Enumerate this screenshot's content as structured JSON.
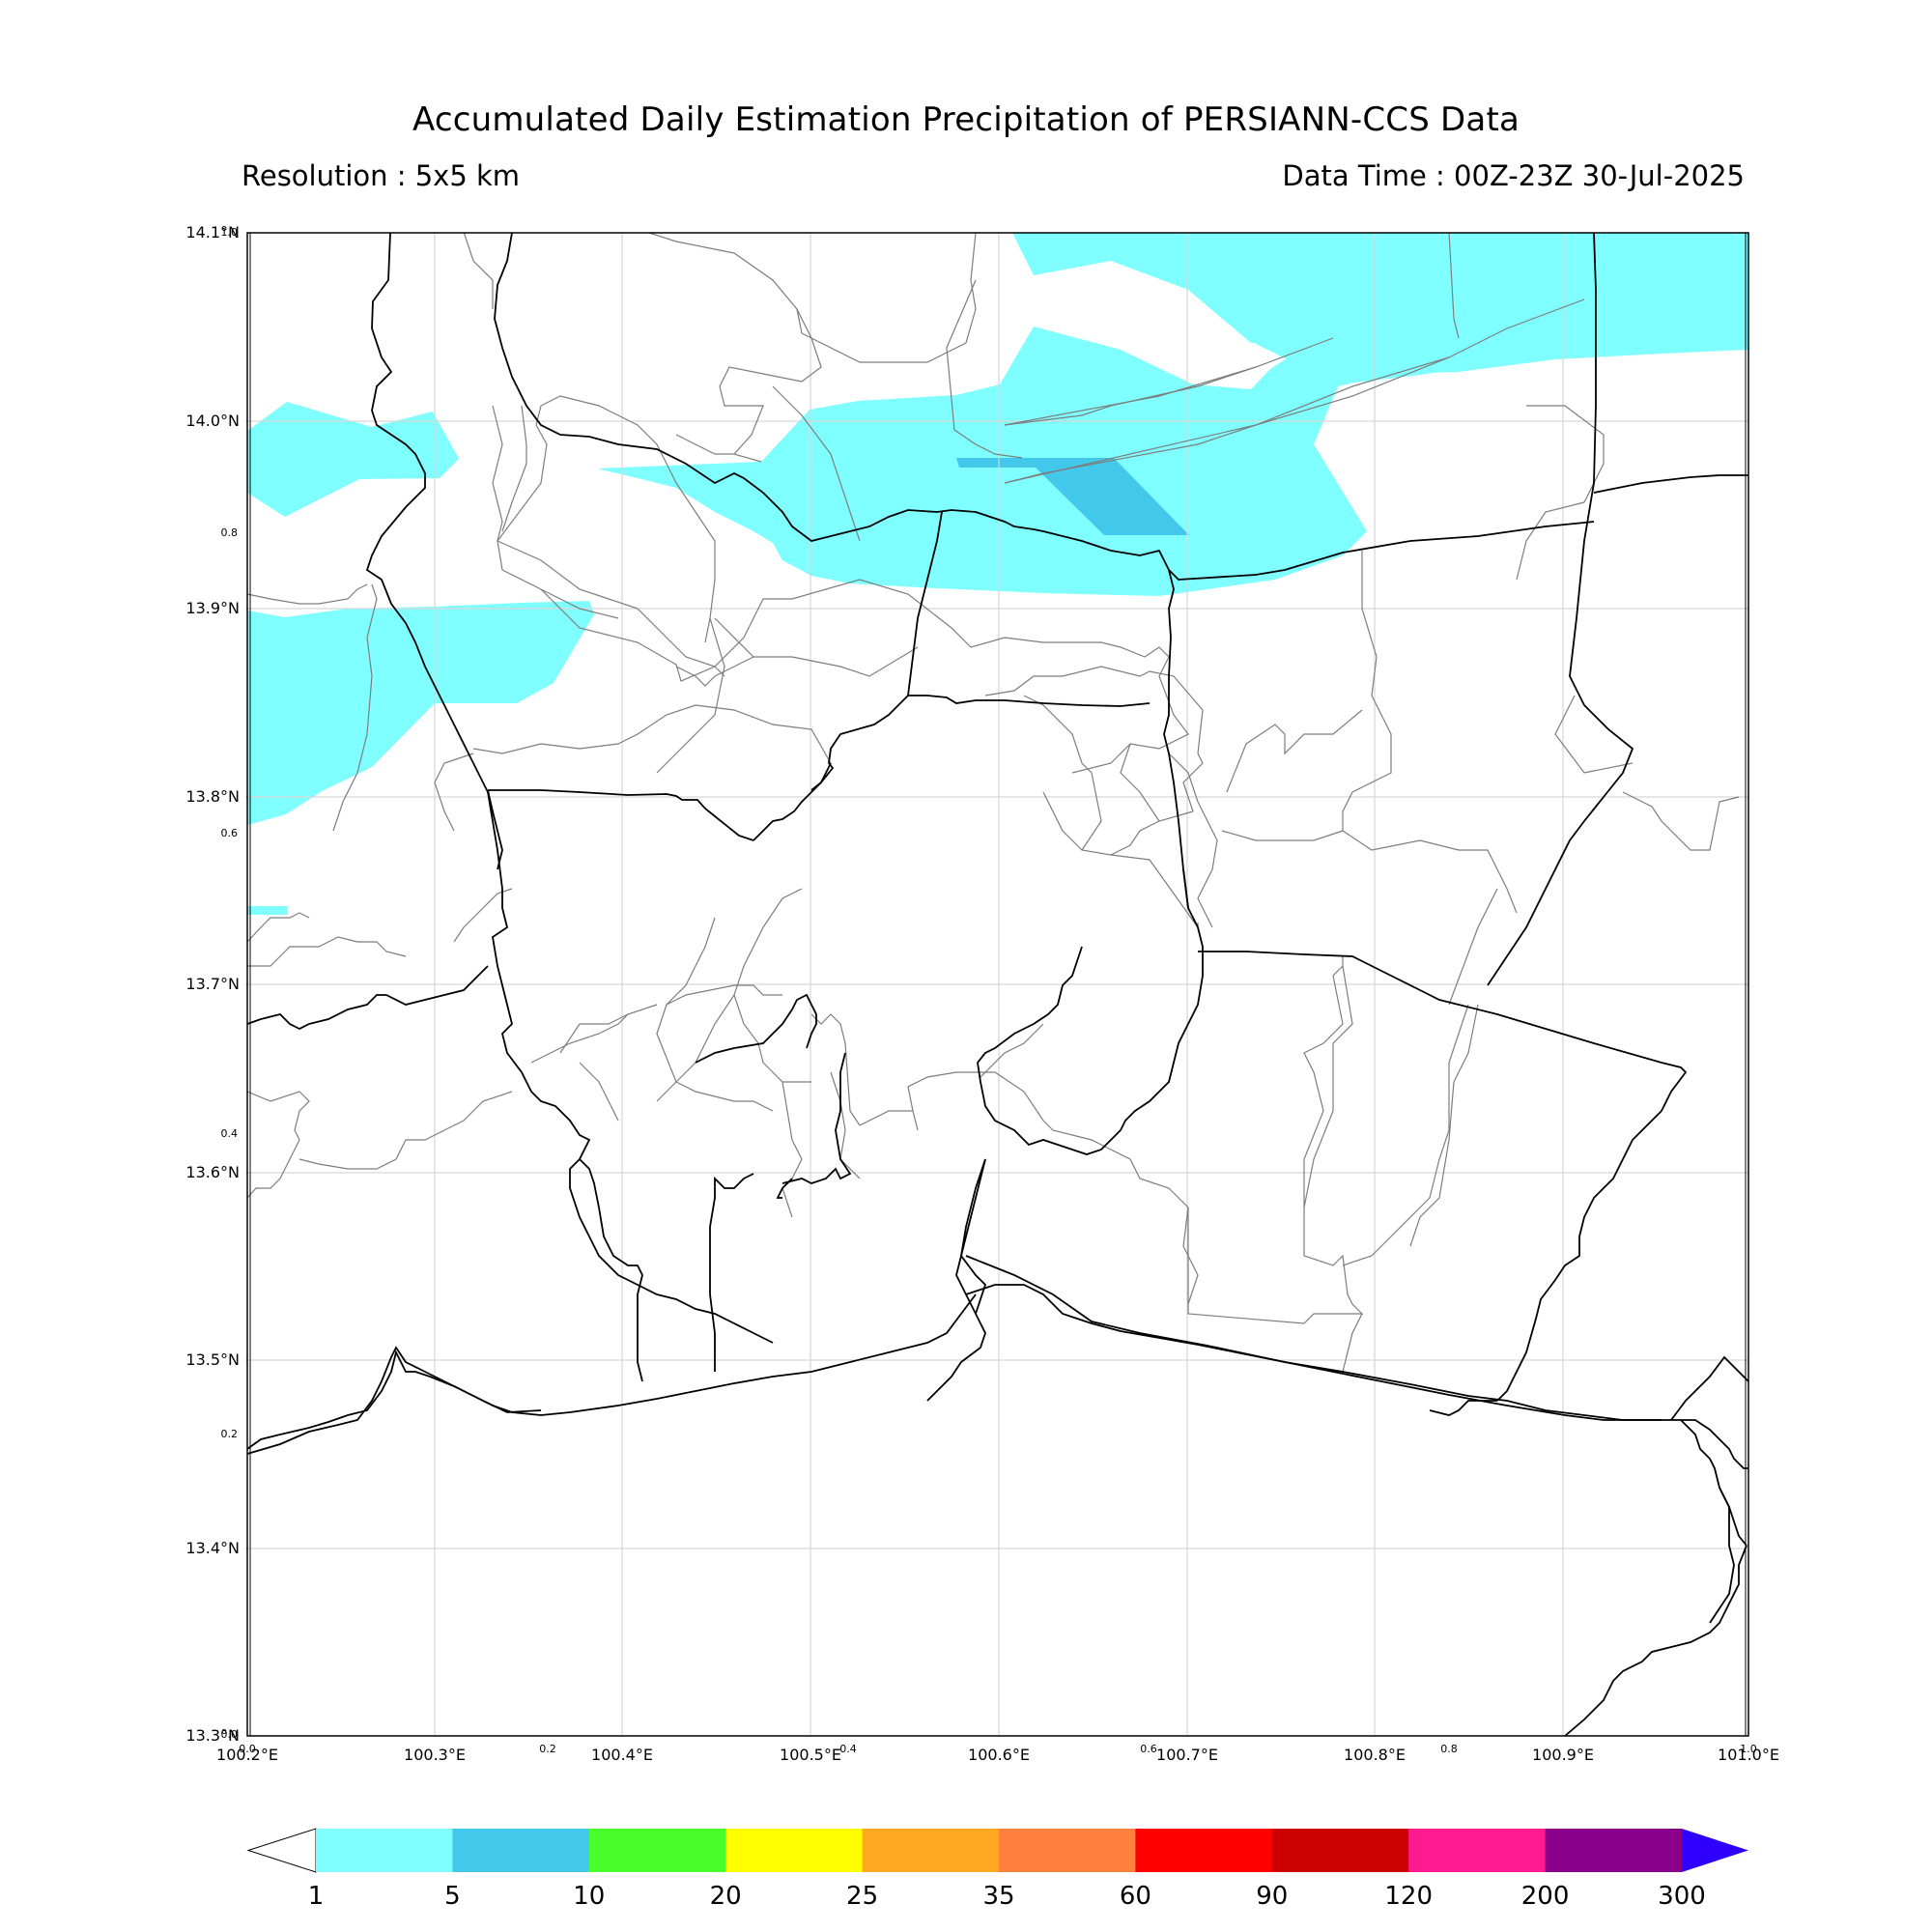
{
  "header": {
    "title": "Accumulated Daily Estimation Precipitation of PERSIANN-CCS Data",
    "resolution": "Resolution : 5x5 km",
    "data_time": "Data Time : 00Z-23Z 30-Jul-2025"
  },
  "map": {
    "extent": {
      "lon_min": 100.2,
      "lon_max": 101.0,
      "lat_min": 13.3,
      "lat_max": 14.1
    },
    "lon_ticks": [
      "100.2°E",
      "100.3°E",
      "100.4°E",
      "100.5°E",
      "100.6°E",
      "100.7°E",
      "100.8°E",
      "100.9°E",
      "101.0°E"
    ],
    "lat_ticks": [
      "13.3°N",
      "13.4°N",
      "13.5°N",
      "13.6°N",
      "13.7°N",
      "13.8°N",
      "13.9°N",
      "14.0°N",
      "14.1°N"
    ],
    "inner_axis_ticks_x": [
      "0.0",
      "0.2",
      "0.4",
      "0.6",
      "0.8",
      "1.0"
    ],
    "inner_axis_ticks_y": [
      "0.0",
      "0.2",
      "0.4",
      "0.6",
      "0.8",
      "1.0"
    ],
    "colors": {
      "light_cyan": "#7fffff",
      "medium_blue": "#41c8ea"
    }
  },
  "colorbar": {
    "levels": [
      "1",
      "5",
      "10",
      "20",
      "25",
      "35",
      "60",
      "90",
      "120",
      "200",
      "300"
    ],
    "colors": [
      "#7fffff",
      "#41c8ea",
      "#49ff2b",
      "#ffff00",
      "#ffa81f",
      "#ff7f3d",
      "#ff0000",
      "#cc0000",
      "#ff1a90",
      "#8a008a"
    ],
    "over_color": "#3000ff",
    "under_color": "#ffffff"
  }
}
